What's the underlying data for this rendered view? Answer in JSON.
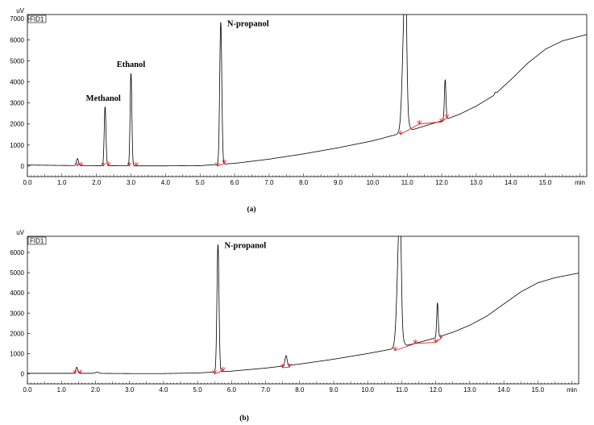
{
  "chart_data": [
    {
      "type": "line",
      "caption": "(a)",
      "detector_label": "FID1",
      "y_unit": "uV",
      "x_unit": "min",
      "xlim": [
        0.0,
        16.2
      ],
      "ylim": [
        -500,
        7200
      ],
      "x_ticks": [
        "0.0",
        "1.0",
        "2.0",
        "3.0",
        "4.0",
        "5.0",
        "6.0",
        "7.0",
        "8.0",
        "9.0",
        "10.0",
        "11.0",
        "12.0",
        "13.0",
        "14.0",
        "15.0"
      ],
      "y_ticks": [
        "0",
        "1000",
        "2000",
        "3000",
        "4000",
        "5000",
        "6000",
        "7000"
      ],
      "annotations": [
        {
          "text": "Methanol",
          "x": 2.2,
          "y": 2800
        },
        {
          "text": "Ethanol",
          "x": 3.0,
          "y": 4400
        },
        {
          "text": "N-propanol",
          "x": 5.6,
          "y": 6750
        }
      ],
      "baseline": [
        [
          0.0,
          50
        ],
        [
          1.0,
          30
        ],
        [
          2.0,
          20
        ],
        [
          3.0,
          10
        ],
        [
          4.0,
          10
        ],
        [
          5.0,
          20
        ],
        [
          6.0,
          130
        ],
        [
          7.0,
          330
        ],
        [
          8.0,
          580
        ],
        [
          9.0,
          870
        ],
        [
          10.0,
          1200
        ],
        [
          10.8,
          1550
        ],
        [
          11.5,
          1900
        ],
        [
          12.0,
          2150
        ],
        [
          12.5,
          2450
        ],
        [
          13.0,
          2850
        ],
        [
          13.5,
          3350
        ],
        [
          14.0,
          4100
        ],
        [
          14.5,
          4900
        ],
        [
          15.0,
          5550
        ],
        [
          15.5,
          5950
        ],
        [
          16.2,
          6250
        ]
      ],
      "peaks": [
        {
          "x": 1.45,
          "height": 330,
          "width": 0.03
        },
        {
          "x": 2.25,
          "height": 2800,
          "width": 0.025
        },
        {
          "x": 3.0,
          "height": 4400,
          "width": 0.025
        },
        {
          "x": 5.6,
          "height": 6750,
          "width": 0.03
        },
        {
          "x": 10.95,
          "height": 7400,
          "width": 0.07,
          "tail": 0.12
        },
        {
          "x": 12.1,
          "height": 1900,
          "width": 0.022
        },
        {
          "x": 13.55,
          "height": 80,
          "width": 0.02
        }
      ],
      "integration_markers": [
        [
          1.45,
          0
        ],
        [
          1.55,
          10
        ],
        [
          2.2,
          0
        ],
        [
          2.35,
          10
        ],
        [
          2.95,
          0
        ],
        [
          3.15,
          10
        ],
        [
          5.5,
          0
        ],
        [
          5.7,
          120
        ],
        [
          10.8,
          1500
        ],
        [
          11.35,
          2000
        ],
        [
          12.0,
          2100
        ],
        [
          12.15,
          2300
        ]
      ],
      "integration_segments": [
        [
          [
            5.5,
            0
          ],
          [
            5.7,
            120
          ]
        ],
        [
          [
            10.8,
            1500
          ],
          [
            11.35,
            2000
          ]
        ],
        [
          [
            11.35,
            2000
          ],
          [
            12.0,
            2100
          ]
        ],
        [
          [
            12.0,
            2100
          ],
          [
            12.15,
            2300
          ]
        ]
      ]
    },
    {
      "type": "line",
      "caption": "(b)",
      "detector_label": "FID1",
      "y_unit": "uV",
      "x_unit": "min",
      "xlim": [
        0.0,
        16.2
      ],
      "ylim": [
        -500,
        6800
      ],
      "x_ticks": [
        "0.0",
        "1.0",
        "2.0",
        "3.0",
        "4.0",
        "5.0",
        "6.0",
        "7.0",
        "8.0",
        "9.0",
        "10.0",
        "11.0",
        "12.0",
        "13.0",
        "14.0",
        "15.0"
      ],
      "y_ticks": [
        "0",
        "1000",
        "2000",
        "3000",
        "4000",
        "5000",
        "6000"
      ],
      "annotations": [
        {
          "text": "N-propanol",
          "x": 5.6,
          "y": 6350
        }
      ],
      "baseline": [
        [
          0.0,
          20
        ],
        [
          1.0,
          20
        ],
        [
          2.0,
          20
        ],
        [
          3.0,
          10
        ],
        [
          4.0,
          10
        ],
        [
          5.0,
          40
        ],
        [
          6.0,
          130
        ],
        [
          7.0,
          280
        ],
        [
          8.0,
          480
        ],
        [
          9.0,
          720
        ],
        [
          10.0,
          1000
        ],
        [
          10.8,
          1250
        ],
        [
          11.5,
          1550
        ],
        [
          12.0,
          1780
        ],
        [
          12.5,
          2050
        ],
        [
          13.0,
          2400
        ],
        [
          13.5,
          2850
        ],
        [
          14.0,
          3450
        ],
        [
          14.5,
          4050
        ],
        [
          15.0,
          4500
        ],
        [
          15.5,
          4750
        ],
        [
          16.2,
          4980
        ]
      ],
      "peaks": [
        {
          "x": 1.45,
          "height": 300,
          "width": 0.03
        },
        {
          "x": 2.05,
          "height": 60,
          "width": 0.05
        },
        {
          "x": 5.6,
          "height": 6300,
          "width": 0.03
        },
        {
          "x": 7.6,
          "height": 500,
          "width": 0.03
        },
        {
          "x": 10.95,
          "height": 7000,
          "width": 0.07,
          "tail": 0.12
        },
        {
          "x": 12.05,
          "height": 1700,
          "width": 0.022
        }
      ],
      "integration_markers": [
        [
          1.4,
          0
        ],
        [
          1.55,
          10
        ],
        [
          5.5,
          0
        ],
        [
          5.75,
          150
        ],
        [
          7.5,
          300
        ],
        [
          7.7,
          330
        ],
        [
          10.8,
          1150
        ],
        [
          11.4,
          1500
        ],
        [
          12.0,
          1550
        ],
        [
          12.15,
          1750
        ]
      ],
      "integration_segments": [
        [
          [
            5.5,
            0
          ],
          [
            5.75,
            150
          ]
        ],
        [
          [
            7.5,
            300
          ],
          [
            7.7,
            330
          ]
        ],
        [
          [
            10.8,
            1150
          ],
          [
            11.4,
            1500
          ]
        ],
        [
          [
            11.4,
            1500
          ],
          [
            12.0,
            1550
          ]
        ],
        [
          [
            12.0,
            1550
          ],
          [
            12.15,
            1750
          ]
        ]
      ]
    }
  ]
}
